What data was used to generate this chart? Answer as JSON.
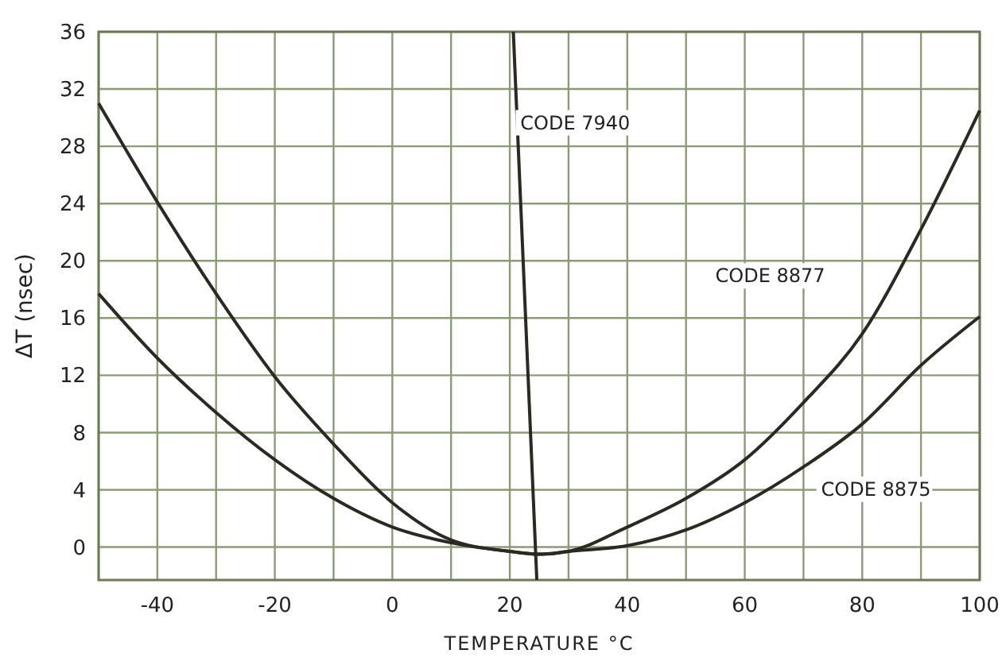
{
  "chart_data": {
    "type": "line",
    "xlabel": "TEMPERATURE °C",
    "ylabel": "ΔT (nsec)",
    "xlim": [
      -50,
      100
    ],
    "ylim": [
      -2.3,
      36
    ],
    "xticks": [
      {
        "value": -50,
        "label": null
      },
      -40,
      {
        "value": -30,
        "label": null
      },
      -20,
      {
        "value": -10,
        "label": null
      },
      0,
      {
        "value": 10,
        "label": null
      },
      20,
      {
        "value": 30,
        "label": null
      },
      40,
      {
        "value": 50,
        "label": null
      },
      60,
      {
        "value": 70,
        "label": null
      },
      80,
      {
        "value": 90,
        "label": null
      },
      100
    ],
    "yticks": [
      0,
      4,
      8,
      12,
      16,
      20,
      24,
      28,
      32,
      36
    ],
    "grid": true,
    "marker": "none",
    "line_style": "solid",
    "series": [
      {
        "name": "CODE 7940",
        "color": "#2a2a22",
        "x": [
          20.6,
          24.6
        ],
        "values": [
          36,
          -2.3
        ]
      },
      {
        "name": "CODE 8877",
        "color": "#2a2a22",
        "x": [
          -50,
          -40,
          -30,
          -20,
          -10,
          0,
          10,
          20,
          25,
          30,
          40,
          50,
          60,
          70,
          80,
          90,
          100
        ],
        "values": [
          31,
          24.1,
          17.7,
          11.9,
          7.2,
          3.1,
          0.5,
          -0.3,
          -0.5,
          -0.3,
          1.4,
          3.4,
          6.1,
          10.1,
          14.9,
          22.2,
          30.5
        ]
      },
      {
        "name": "CODE 8875",
        "color": "#2a2a22",
        "x": [
          -50,
          -40,
          -30,
          -20,
          -10,
          0,
          10,
          20,
          25,
          30,
          40,
          50,
          60,
          70,
          80,
          90,
          100
        ],
        "values": [
          17.7,
          13.2,
          9.4,
          6.1,
          3.4,
          1.4,
          0.3,
          -0.3,
          -0.5,
          -0.3,
          0.1,
          1.2,
          3.1,
          5.6,
          8.6,
          12.7,
          16.1
        ]
      }
    ]
  }
}
